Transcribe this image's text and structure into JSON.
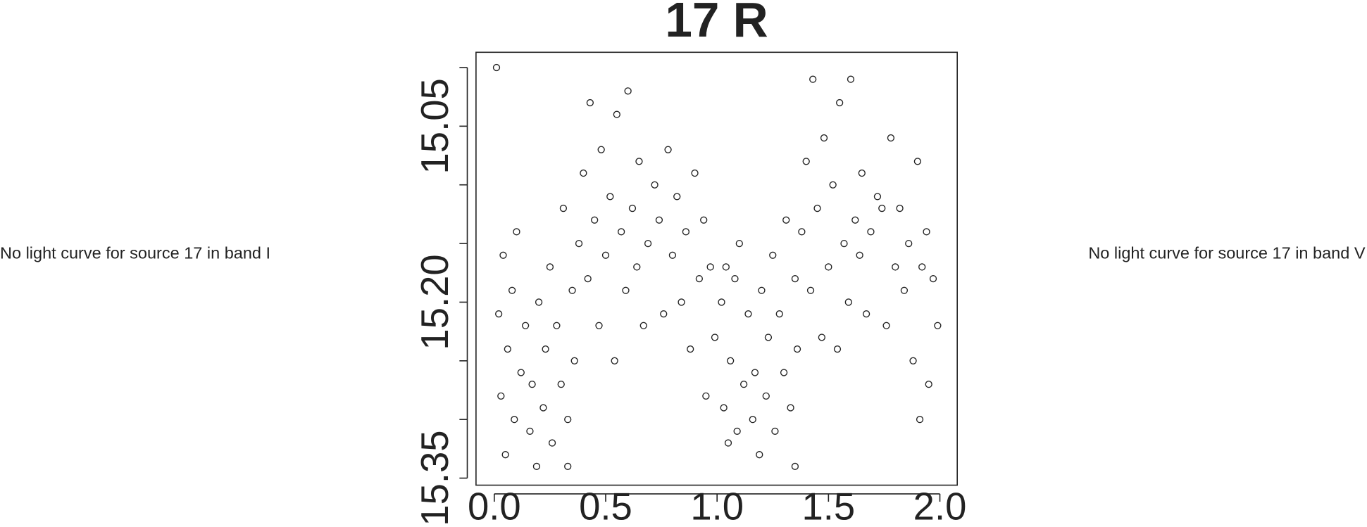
{
  "chart_data": {
    "type": "scatter",
    "title": "17 R",
    "left_note": "No light curve for source 17 in band I",
    "right_note": "No light curve for source 17 in band V",
    "color": "#222222",
    "x": [
      0.02,
      0.03,
      0.04,
      0.05,
      0.06,
      0.08,
      0.09,
      0.1,
      0.12,
      0.14,
      0.16,
      0.17,
      0.19,
      0.2,
      0.22,
      0.23,
      0.25,
      0.26,
      0.28,
      0.3,
      0.31,
      0.33,
      0.35,
      0.36,
      0.38,
      0.4,
      0.42,
      0.43,
      0.45,
      0.47,
      0.48,
      0.5,
      0.52,
      0.54,
      0.55,
      0.57,
      0.59,
      0.6,
      0.62,
      0.64,
      0.65,
      0.67,
      0.69,
      0.72,
      0.74,
      0.76,
      0.78,
      0.8,
      0.82,
      0.84,
      0.86,
      0.88,
      0.9,
      0.92,
      0.94,
      0.95,
      0.97,
      0.99,
      0.01,
      0.33,
      1.02,
      1.03,
      1.04,
      1.05,
      1.06,
      1.08,
      1.09,
      1.1,
      1.12,
      1.14,
      1.16,
      1.17,
      1.19,
      1.2,
      1.22,
      1.23,
      1.25,
      1.26,
      1.28,
      1.3,
      1.31,
      1.33,
      1.35,
      1.36,
      1.38,
      1.4,
      1.42,
      1.43,
      1.45,
      1.47,
      1.48,
      1.5,
      1.52,
      1.54,
      1.55,
      1.57,
      1.59,
      1.6,
      1.62,
      1.64,
      1.65,
      1.67,
      1.69,
      1.72,
      1.74,
      1.76,
      1.78,
      1.8,
      1.82,
      1.84,
      1.86,
      1.88,
      1.9,
      1.92,
      1.94,
      1.95,
      1.97,
      1.99,
      1.91,
      1.35
    ],
    "y": [
      15.21,
      15.28,
      15.16,
      15.33,
      15.24,
      15.19,
      15.3,
      15.14,
      15.26,
      15.22,
      15.31,
      15.27,
      15.34,
      15.2,
      15.29,
      15.24,
      15.17,
      15.32,
      15.22,
      15.27,
      15.12,
      15.3,
      15.19,
      15.25,
      15.15,
      15.09,
      15.18,
      15.03,
      15.13,
      15.22,
      15.07,
      15.16,
      15.11,
      15.25,
      15.04,
      15.14,
      15.19,
      15.02,
      15.12,
      15.17,
      15.08,
      15.22,
      15.15,
      15.1,
      15.13,
      15.21,
      15.07,
      15.16,
      15.11,
      15.2,
      15.14,
      15.24,
      15.09,
      15.18,
      15.13,
      15.28,
      15.17,
      15.23,
      15.0,
      15.34,
      15.2,
      15.29,
      15.17,
      15.32,
      15.25,
      15.18,
      15.31,
      15.15,
      15.27,
      15.21,
      15.3,
      15.26,
      15.33,
      15.19,
      15.28,
      15.23,
      15.16,
      15.31,
      15.21,
      15.26,
      15.13,
      15.29,
      15.18,
      15.24,
      15.14,
      15.08,
      15.19,
      15.01,
      15.12,
      15.23,
      15.06,
      15.17,
      15.1,
      15.24,
      15.03,
      15.15,
      15.2,
      15.01,
      15.13,
      15.16,
      15.09,
      15.21,
      15.14,
      15.11,
      15.12,
      15.22,
      15.06,
      15.17,
      15.12,
      15.19,
      15.15,
      15.25,
      15.08,
      15.17,
      15.14,
      15.27,
      15.18,
      15.22,
      15.3,
      15.34
    ],
    "xlim": [
      -0.082,
      2.078
    ],
    "xticks": [
      {
        "value": 0,
        "label": "0.0"
      },
      0.5,
      {
        "value": 1,
        "label": "1.0"
      },
      1.5,
      {
        "value": 2,
        "label": "2.0"
      }
    ],
    "ylim": [
      15.356,
      14.987
    ],
    "yticks": [
      15.05,
      {
        "value": 15.2,
        "label": "15.20"
      },
      15.35
    ],
    "yminor_ticks": [
      15.0,
      15.1,
      15.15,
      15.25,
      15.3
    ]
  }
}
